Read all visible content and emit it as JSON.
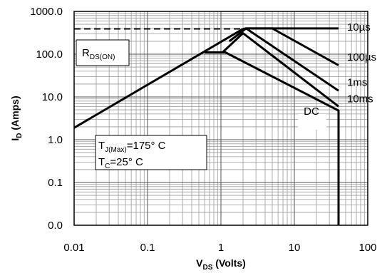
{
  "chart_data": {
    "type": "line",
    "title": "",
    "xlabel": {
      "main": "V",
      "sub": "DS",
      "rest": " (Volts)"
    },
    "ylabel": {
      "main": "I",
      "sub": "D",
      "rest": " (Amps)"
    },
    "xscale": "log",
    "yscale": "log",
    "xlim": [
      0.01,
      100
    ],
    "ylim": [
      0.01,
      1000
    ],
    "x_ticks": [
      {
        "v": 0.01,
        "label": "0.01"
      },
      {
        "v": 0.1,
        "label": "0.1"
      },
      {
        "v": 1,
        "label": "1"
      },
      {
        "v": 10,
        "label": "10"
      },
      {
        "v": 100,
        "label": "100"
      }
    ],
    "y_ticks": [
      {
        "v": 0.01,
        "label": "0.0"
      },
      {
        "v": 0.1,
        "label": "0.1"
      },
      {
        "v": 1,
        "label": "1.0"
      },
      {
        "v": 10,
        "label": "10.0"
      },
      {
        "v": 100,
        "label": "100.0"
      },
      {
        "v": 1000,
        "label": "1000.0"
      }
    ],
    "grid": true,
    "rds_limit": {
      "x": [
        0.01,
        2.0
      ],
      "y": [
        1.9,
        390
      ]
    },
    "package_limit": {
      "x": [
        0.01,
        2.0
      ],
      "y": [
        390,
        390
      ]
    },
    "series": [
      {
        "name": "10µs",
        "x": [
          2.0,
          2.2,
          40
        ],
        "y": [
          390,
          400,
          400
        ]
      },
      {
        "name": "100µs",
        "x": [
          2.2,
          5,
          40
        ],
        "y": [
          400,
          400,
          55
        ]
      },
      {
        "name": "1ms",
        "x": [
          1.3,
          2.2,
          40
        ],
        "y": [
          200,
          400,
          14
        ]
      },
      {
        "name": "10ms",
        "x": [
          1.05,
          2.0,
          40
        ],
        "y": [
          110,
          310,
          6
        ]
      },
      {
        "name": "DC",
        "x": [
          0.6,
          1.15,
          40,
          40
        ],
        "y": [
          110,
          110,
          4.8,
          0.01
        ]
      }
    ],
    "series_labels": [
      {
        "text": "10µs",
        "x": 60,
        "y": 430
      },
      {
        "text": "100µs",
        "x": 60,
        "y": 85
      },
      {
        "text": "1ms",
        "x": 60,
        "y": 22
      },
      {
        "text": "10ms",
        "x": 60,
        "y": 9
      },
      {
        "text": "DC",
        "x": 18,
        "y": 4.6
      }
    ],
    "annotations": {
      "rds": {
        "main": "R",
        "sub": "DS(ON)"
      },
      "tj_line": {
        "main": "T",
        "sub": "J(Max)",
        "rest": "=175°  C"
      },
      "tc_line": {
        "main": "T",
        "sub": "C",
        "rest": "=25°  C"
      }
    }
  }
}
